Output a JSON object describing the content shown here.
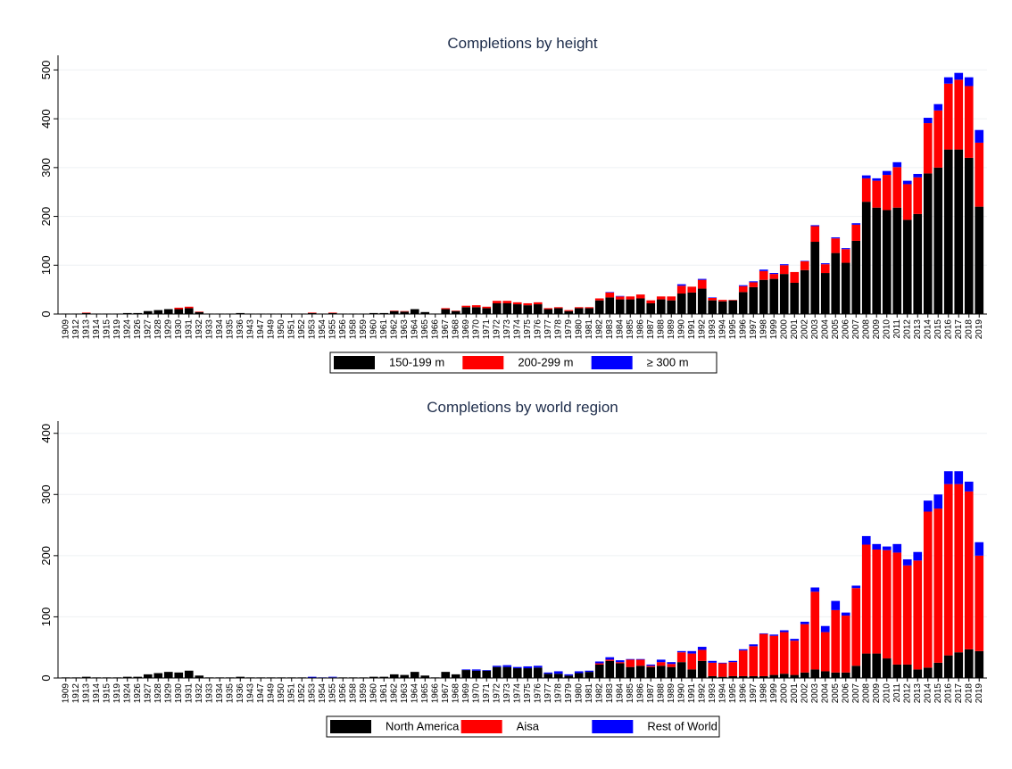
{
  "chart_data": [
    {
      "type": "bar",
      "stacked": true,
      "title": "Completions by height",
      "grid": true,
      "legend": "bottom",
      "categories": [
        "1909",
        "1912",
        "1913",
        "1914",
        "1915",
        "1919",
        "1924",
        "1926",
        "1927",
        "1928",
        "1929",
        "1930",
        "1931",
        "1932",
        "1933",
        "1934",
        "1935",
        "1936",
        "1943",
        "1947",
        "1949",
        "1950",
        "1951",
        "1952",
        "1953",
        "1954",
        "1955",
        "1956",
        "1958",
        "1959",
        "1960",
        "1961",
        "1962",
        "1963",
        "1964",
        "1965",
        "1966",
        "1967",
        "1968",
        "1969",
        "1970",
        "1971",
        "1972",
        "1973",
        "1974",
        "1975",
        "1976",
        "1977",
        "1978",
        "1979",
        "1980",
        "1981",
        "1982",
        "1983",
        "1984",
        "1985",
        "1986",
        "1987",
        "1988",
        "1989",
        "1990",
        "1991",
        "1992",
        "1993",
        "1994",
        "1995",
        "1996",
        "1997",
        "1998",
        "1999",
        "2000",
        "2001",
        "2002",
        "2003",
        "2004",
        "2005",
        "2006",
        "2007",
        "2008",
        "2009",
        "2010",
        "2011",
        "2012",
        "2013",
        "2014",
        "2015",
        "2016",
        "2017",
        "2018",
        "2019"
      ],
      "ylim": [
        0,
        530
      ],
      "yticks": [
        0,
        100,
        200,
        300,
        400,
        500
      ],
      "series": [
        {
          "name": "150-199 m",
          "color": "#000000",
          "values": [
            1,
            1,
            2,
            1,
            1,
            1,
            2,
            2,
            6,
            8,
            10,
            10,
            12,
            4,
            1,
            1,
            1,
            2,
            1,
            1,
            1,
            1,
            1,
            1,
            2,
            1,
            2,
            1,
            1,
            1,
            2,
            2,
            6,
            5,
            10,
            4,
            1,
            10,
            6,
            14,
            14,
            12,
            22,
            22,
            20,
            18,
            20,
            10,
            12,
            6,
            12,
            12,
            28,
            34,
            30,
            30,
            32,
            22,
            30,
            28,
            42,
            44,
            52,
            28,
            26,
            28,
            45,
            55,
            70,
            72,
            82,
            64,
            90,
            148,
            84,
            125,
            105,
            150,
            230,
            218,
            213,
            218,
            193,
            205,
            288,
            300,
            337,
            337,
            320,
            220
          ]
        },
        {
          "name": "200-299 m",
          "color": "#ff0000",
          "values": [
            0,
            0,
            1,
            0,
            0,
            0,
            0,
            0,
            0,
            0,
            0,
            3,
            3,
            1,
            0,
            0,
            0,
            0,
            0,
            0,
            0,
            0,
            0,
            0,
            1,
            0,
            1,
            0,
            0,
            0,
            0,
            0,
            1,
            1,
            0,
            0,
            0,
            2,
            1,
            3,
            4,
            3,
            5,
            5,
            4,
            4,
            4,
            2,
            2,
            2,
            2,
            2,
            4,
            10,
            6,
            6,
            8,
            6,
            6,
            8,
            16,
            12,
            18,
            5,
            3,
            1,
            12,
            10,
            18,
            10,
            18,
            22,
            18,
            32,
            18,
            30,
            28,
            33,
            48,
            55,
            72,
            83,
            73,
            75,
            103,
            117,
            135,
            143,
            147,
            131
          ]
        },
        {
          "name": "≥ 300 m",
          "color": "#0000ff",
          "values": [
            0,
            0,
            0,
            0,
            0,
            0,
            0,
            0,
            0,
            0,
            0,
            0,
            0,
            0,
            0,
            0,
            0,
            0,
            0,
            0,
            0,
            0,
            0,
            0,
            0,
            0,
            0,
            0,
            0,
            0,
            0,
            0,
            0,
            0,
            0,
            0,
            0,
            0,
            0,
            0,
            0,
            0,
            0,
            0,
            0,
            0,
            0,
            0,
            0,
            0,
            0,
            0,
            0,
            1,
            1,
            0,
            0,
            0,
            0,
            0,
            3,
            0,
            2,
            1,
            0,
            0,
            2,
            2,
            3,
            2,
            2,
            0,
            1,
            2,
            2,
            2,
            2,
            3,
            6,
            5,
            8,
            10,
            7,
            7,
            11,
            13,
            13,
            14,
            18,
            26
          ]
        }
      ]
    },
    {
      "type": "bar",
      "stacked": true,
      "title": "Completions by world region",
      "grid": true,
      "legend": "bottom",
      "categories": [
        "1909",
        "1912",
        "1913",
        "1914",
        "1915",
        "1919",
        "1924",
        "1926",
        "1927",
        "1928",
        "1929",
        "1930",
        "1931",
        "1932",
        "1933",
        "1934",
        "1935",
        "1936",
        "1943",
        "1947",
        "1949",
        "1950",
        "1951",
        "1952",
        "1953",
        "1954",
        "1955",
        "1956",
        "1958",
        "1959",
        "1960",
        "1961",
        "1962",
        "1963",
        "1964",
        "1965",
        "1966",
        "1967",
        "1968",
        "1969",
        "1970",
        "1971",
        "1972",
        "1973",
        "1974",
        "1975",
        "1976",
        "1977",
        "1978",
        "1979",
        "1980",
        "1981",
        "1982",
        "1983",
        "1984",
        "1985",
        "1986",
        "1987",
        "1988",
        "1989",
        "1990",
        "1991",
        "1992",
        "1993",
        "1994",
        "1995",
        "1996",
        "1997",
        "1998",
        "1999",
        "2000",
        "2001",
        "2002",
        "2003",
        "2004",
        "2005",
        "2006",
        "2007",
        "2008",
        "2009",
        "2010",
        "2011",
        "2012",
        "2013",
        "2014",
        "2015",
        "2016",
        "2017",
        "2018",
        "2019"
      ],
      "ylim": [
        0,
        420
      ],
      "yticks": [
        0,
        100,
        200,
        300,
        400
      ],
      "series": [
        {
          "name": "North America",
          "color": "#000000",
          "values": [
            1,
            1,
            2,
            1,
            1,
            1,
            2,
            2,
            6,
            8,
            10,
            9,
            12,
            4,
            1,
            1,
            1,
            2,
            1,
            1,
            1,
            1,
            1,
            1,
            0,
            0,
            1,
            1,
            1,
            1,
            2,
            2,
            6,
            5,
            10,
            4,
            1,
            10,
            6,
            13,
            12,
            12,
            18,
            18,
            16,
            16,
            17,
            7,
            7,
            4,
            8,
            10,
            22,
            28,
            24,
            18,
            20,
            18,
            20,
            18,
            26,
            14,
            28,
            3,
            2,
            3,
            3,
            3,
            3,
            5,
            7,
            5,
            9,
            14,
            11,
            9,
            9,
            20,
            40,
            40,
            32,
            22,
            22,
            14,
            17,
            25,
            37,
            42,
            47,
            44
          ]
        },
        {
          "name": "Aisa",
          "color": "#ff0000",
          "values": [
            0,
            0,
            0,
            0,
            0,
            0,
            0,
            0,
            0,
            0,
            0,
            0,
            0,
            0,
            0,
            0,
            0,
            0,
            0,
            0,
            0,
            0,
            0,
            0,
            0,
            0,
            0,
            0,
            0,
            0,
            0,
            0,
            0,
            0,
            0,
            0,
            0,
            0,
            0,
            0,
            0,
            0,
            0,
            0,
            0,
            0,
            0,
            0,
            0,
            0,
            0,
            0,
            2,
            2,
            2,
            12,
            10,
            2,
            6,
            5,
            16,
            26,
            18,
            22,
            22,
            23,
            42,
            49,
            69,
            64,
            68,
            56,
            79,
            127,
            64,
            102,
            93,
            127,
            178,
            170,
            177,
            183,
            162,
            178,
            255,
            252,
            280,
            275,
            258,
            156
          ]
        },
        {
          "name": "Rest of World",
          "color": "#0000ff",
          "values": [
            0,
            0,
            0,
            0,
            0,
            0,
            0,
            0,
            0,
            0,
            0,
            0,
            0,
            0,
            0,
            0,
            0,
            0,
            0,
            0,
            0,
            0,
            0,
            0,
            2,
            1,
            1,
            0,
            0,
            0,
            0,
            0,
            0,
            0,
            0,
            0,
            0,
            0,
            0,
            1,
            2,
            1,
            2,
            3,
            2,
            3,
            3,
            2,
            4,
            2,
            3,
            2,
            3,
            4,
            3,
            1,
            1,
            2,
            4,
            3,
            2,
            4,
            5,
            3,
            1,
            2,
            2,
            3,
            1,
            2,
            3,
            3,
            4,
            7,
            10,
            15,
            5,
            4,
            14,
            9,
            6,
            14,
            10,
            14,
            18,
            23,
            21,
            21,
            16,
            22
          ]
        }
      ]
    }
  ]
}
